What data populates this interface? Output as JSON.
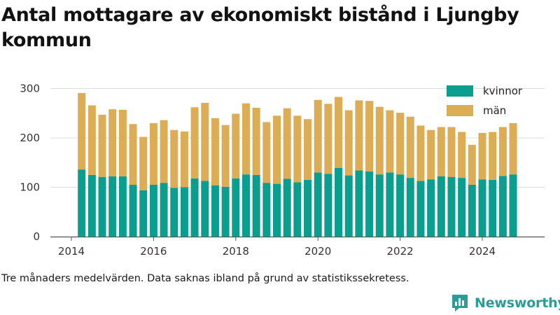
{
  "title": "Antal mottagare av ekonomiskt bistånd i Ljungby kommun",
  "footnote": "Tre månaders medelvärden. Data saknas ibland på grund av statistikssekretess.",
  "brand": {
    "name": "Newsworthy",
    "logo_icon": "bar-chart-speech-bubble-icon"
  },
  "colors": {
    "kvinnor": "#0a9e8e",
    "man": "#dcad54",
    "grid": "#dddddd",
    "brand": "#2a9d96"
  },
  "chart_data": {
    "type": "bar",
    "stacked": true,
    "x_label_ticks": [
      "2014",
      "2016",
      "2018",
      "2020",
      "2022",
      "2024"
    ],
    "y_ticks": [
      "0",
      "100",
      "200",
      "300"
    ],
    "ylim": [
      0,
      310
    ],
    "grid": true,
    "legend_position": "top-right",
    "x": [
      "2014-04",
      "2014-07",
      "2014-10",
      "2015-01",
      "2015-04",
      "2015-07",
      "2015-10",
      "2016-01",
      "2016-04",
      "2016-07",
      "2016-10",
      "2017-01",
      "2017-04",
      "2017-07",
      "2017-10",
      "2018-01",
      "2018-04",
      "2018-07",
      "2018-10",
      "2019-01",
      "2019-04",
      "2019-07",
      "2019-10",
      "2020-01",
      "2020-04",
      "2020-07",
      "2020-10",
      "2021-01",
      "2021-04",
      "2021-07",
      "2021-10",
      "2022-01",
      "2022-04",
      "2022-07",
      "2022-10",
      "2023-01",
      "2023-04",
      "2023-07",
      "2023-10",
      "2024-01",
      "2024-04",
      "2024-07",
      "2024-10"
    ],
    "series": [
      {
        "name": "kvinnor",
        "values": [
          136,
          125,
          121,
          122,
          122,
          105,
          94,
          105,
          109,
          99,
          100,
          118,
          113,
          104,
          101,
          118,
          126,
          125,
          109,
          107,
          117,
          110,
          115,
          130,
          127,
          139,
          124,
          134,
          132,
          126,
          130,
          126,
          119,
          113,
          116,
          122,
          121,
          119,
          105,
          116,
          115,
          123,
          126
        ]
      },
      {
        "name": "män",
        "values": [
          155,
          141,
          126,
          136,
          135,
          123,
          108,
          125,
          127,
          117,
          113,
          144,
          158,
          136,
          125,
          131,
          144,
          136,
          123,
          138,
          143,
          135,
          123,
          147,
          142,
          144,
          132,
          142,
          143,
          137,
          126,
          125,
          124,
          112,
          100,
          100,
          101,
          93,
          81,
          94,
          97,
          99,
          104
        ]
      }
    ]
  }
}
